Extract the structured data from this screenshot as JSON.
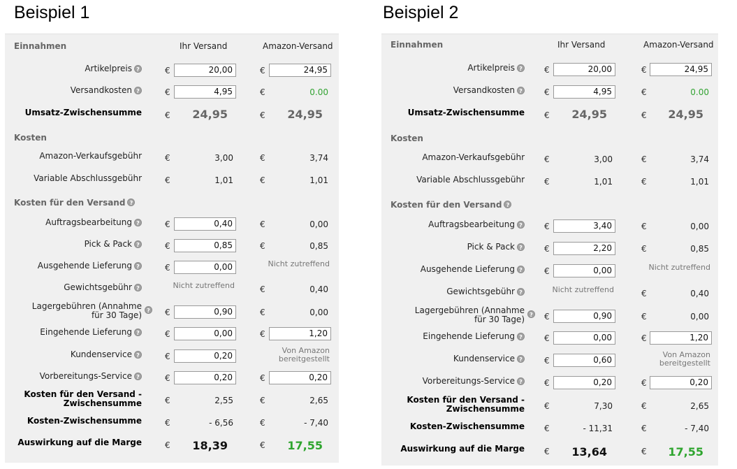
{
  "examples": [
    {
      "title": "Beispiel 1",
      "headers": {
        "section": "Einnahmen",
        "col_ihr": "Ihr Versand",
        "col_amazon": "Amazon-Versand"
      },
      "rows": [
        {
          "key": "artikelpreis",
          "label": "Artikelpreis",
          "help": true,
          "ihr": {
            "type": "input",
            "value": "20,00"
          },
          "amazon": {
            "type": "input",
            "value": "24,95"
          }
        },
        {
          "key": "versandkosten",
          "label": "Versandkosten",
          "help": true,
          "ihr": {
            "type": "input",
            "value": "4,95"
          },
          "amazon": {
            "type": "green",
            "value": "0.00"
          }
        },
        {
          "key": "umsatz",
          "label": "Umsatz-Zwischensumme",
          "bold": true,
          "ihr": {
            "type": "big",
            "value": "24,95"
          },
          "amazon": {
            "type": "big",
            "value": "24,95"
          }
        },
        {
          "key": "kosten",
          "section": "Kosten"
        },
        {
          "key": "verkaufsgebuehr",
          "label": "Amazon-Verkaufsgebühr",
          "ihr": {
            "type": "text",
            "value": "3,00"
          },
          "amazon": {
            "type": "text",
            "value": "3,74"
          }
        },
        {
          "key": "abschlussgebuehr",
          "label": "Variable Abschlussgebühr",
          "ihr": {
            "type": "text",
            "value": "1,01"
          },
          "amazon": {
            "type": "text",
            "value": "1,01"
          }
        },
        {
          "key": "versand-kosten",
          "section": "Kosten für den Versand",
          "help": true
        },
        {
          "key": "auftrag",
          "label": "Auftragsbearbeitung",
          "help": true,
          "ihr": {
            "type": "input",
            "value": "0,40"
          },
          "amazon": {
            "type": "text",
            "value": "0,00"
          }
        },
        {
          "key": "pick",
          "label": "Pick & Pack",
          "help": true,
          "ihr": {
            "type": "input",
            "value": "0,85"
          },
          "amazon": {
            "type": "text",
            "value": "0,85"
          }
        },
        {
          "key": "ausgehend",
          "label": "Ausgehende Lieferung",
          "help": true,
          "ihr": {
            "type": "input",
            "value": "0,00"
          },
          "amazon": {
            "type": "na",
            "value": "Nicht zutreffend"
          }
        },
        {
          "key": "gewicht",
          "label": "Gewichtsgebühr",
          "help": true,
          "ihr": {
            "type": "na",
            "value": "Nicht zutreffend"
          },
          "amazon": {
            "type": "text",
            "value": "0,40"
          }
        },
        {
          "key": "lager",
          "label": "Lagergebühren (Annahme für 30 Tage)",
          "label_lines": [
            "Lagergebühren (Annahme",
            "für 30 Tage)"
          ],
          "help": true,
          "ihr": {
            "type": "input",
            "value": "0,90"
          },
          "amazon": {
            "type": "text",
            "value": "0,00"
          }
        },
        {
          "key": "eingehend",
          "label": "Eingehende Lieferung",
          "help": true,
          "ihr": {
            "type": "input",
            "value": "0,00"
          },
          "amazon": {
            "type": "input",
            "value": "1,20"
          }
        },
        {
          "key": "kundenservice",
          "label": "Kundenservice",
          "help": true,
          "ihr": {
            "type": "input",
            "value": "0,20"
          },
          "amazon": {
            "type": "na2",
            "value": "Von Amazon bereitgestellt",
            "lines": [
              "Von Amazon",
              "bereitgestellt"
            ]
          }
        },
        {
          "key": "vorbereitung",
          "label": "Vorbereitungs-Service",
          "help": true,
          "ihr": {
            "type": "input",
            "value": "0,20"
          },
          "amazon": {
            "type": "input",
            "value": "0,20"
          }
        },
        {
          "key": "versand-zwischensumme",
          "label": "Kosten für den Versand - Zwischensumme",
          "label_lines": [
            "Kosten für den Versand -",
            "Zwischensumme"
          ],
          "bold": true,
          "ihr": {
            "type": "text",
            "value": "2,55"
          },
          "amazon": {
            "type": "text",
            "value": "2,65"
          }
        },
        {
          "key": "kosten-zwischensumme",
          "label": "Kosten-Zwischensumme",
          "bold": true,
          "ihr": {
            "type": "text",
            "value": "- 6,56"
          },
          "amazon": {
            "type": "text",
            "value": "- 7,40"
          }
        },
        {
          "key": "marge",
          "label": "Auswirkung auf die Marge",
          "bold": true,
          "ihr": {
            "type": "bigdark",
            "value": "18,39"
          },
          "amazon": {
            "type": "biggreen",
            "value": "17,55"
          }
        }
      ]
    },
    {
      "title": "Beispiel 2",
      "headers": {
        "section": "Einnahmen",
        "col_ihr": "Ihr Versand",
        "col_amazon": "Amazon-Versand"
      },
      "rows": [
        {
          "key": "artikelpreis",
          "label": "Artikelpreis",
          "help": true,
          "ihr": {
            "type": "input",
            "value": "20,00"
          },
          "amazon": {
            "type": "input",
            "value": "24,95"
          }
        },
        {
          "key": "versandkosten",
          "label": "Versandkosten",
          "help": true,
          "ihr": {
            "type": "input",
            "value": "4,95"
          },
          "amazon": {
            "type": "green",
            "value": "0.00"
          }
        },
        {
          "key": "umsatz",
          "label": "Umsatz-Zwischensumme",
          "bold": true,
          "ihr": {
            "type": "big",
            "value": "24,95"
          },
          "amazon": {
            "type": "big",
            "value": "24,95"
          }
        },
        {
          "key": "kosten",
          "section": "Kosten"
        },
        {
          "key": "verkaufsgebuehr",
          "label": "Amazon-Verkaufsgebühr",
          "ihr": {
            "type": "text",
            "value": "3,00"
          },
          "amazon": {
            "type": "text",
            "value": "3,74"
          }
        },
        {
          "key": "abschlussgebuehr",
          "label": "Variable Abschlussgebühr",
          "ihr": {
            "type": "text",
            "value": "1,01"
          },
          "amazon": {
            "type": "text",
            "value": "1,01"
          }
        },
        {
          "key": "versand-kosten",
          "section": "Kosten für den Versand",
          "help": true
        },
        {
          "key": "auftrag",
          "label": "Auftragsbearbeitung",
          "help": true,
          "ihr": {
            "type": "input",
            "value": "3,40"
          },
          "amazon": {
            "type": "text",
            "value": "0,00"
          }
        },
        {
          "key": "pick",
          "label": "Pick & Pack",
          "help": true,
          "ihr": {
            "type": "input",
            "value": "2,20"
          },
          "amazon": {
            "type": "text",
            "value": "0,85"
          }
        },
        {
          "key": "ausgehend",
          "label": "Ausgehende Lieferung",
          "help": true,
          "ihr": {
            "type": "input",
            "value": "0,00"
          },
          "amazon": {
            "type": "na",
            "value": "Nicht zutreffend"
          }
        },
        {
          "key": "gewicht",
          "label": "Gewichtsgebühr",
          "help": true,
          "ihr": {
            "type": "na",
            "value": "Nicht zutreffend"
          },
          "amazon": {
            "type": "text",
            "value": "0,40"
          }
        },
        {
          "key": "lager",
          "label": "Lagergebühren (Annahme für 30 Tage)",
          "label_lines": [
            "Lagergebühren (Annahme",
            "für 30 Tage)"
          ],
          "help": true,
          "ihr": {
            "type": "input",
            "value": "0,90"
          },
          "amazon": {
            "type": "text",
            "value": "0,00"
          }
        },
        {
          "key": "eingehend",
          "label": "Eingehende Lieferung",
          "help": true,
          "ihr": {
            "type": "input",
            "value": "0,00"
          },
          "amazon": {
            "type": "input",
            "value": "1,20"
          }
        },
        {
          "key": "kundenservice",
          "label": "Kundenservice",
          "help": true,
          "ihr": {
            "type": "input",
            "value": "0,60"
          },
          "amazon": {
            "type": "na2",
            "value": "Von Amazon bereitgestellt",
            "lines": [
              "Von Amazon",
              "bereitgestellt"
            ]
          }
        },
        {
          "key": "vorbereitung",
          "label": "Vorbereitungs-Service",
          "help": true,
          "ihr": {
            "type": "input",
            "value": "0,20"
          },
          "amazon": {
            "type": "input",
            "value": "0,20"
          }
        },
        {
          "key": "versand-zwischensumme",
          "label": "Kosten für den Versand - Zwischensumme",
          "label_lines": [
            "Kosten für den Versand -",
            "Zwischensumme"
          ],
          "bold": true,
          "ihr": {
            "type": "text",
            "value": "7,30"
          },
          "amazon": {
            "type": "text",
            "value": "2,65"
          }
        },
        {
          "key": "kosten-zwischensumme",
          "label": "Kosten-Zwischensumme",
          "bold": true,
          "ihr": {
            "type": "text",
            "value": "- 11,31"
          },
          "amazon": {
            "type": "text",
            "value": "- 7,40"
          }
        },
        {
          "key": "marge",
          "label": "Auswirkung auf die Marge",
          "bold": true,
          "ihr": {
            "type": "bigdark",
            "value": "13,64"
          },
          "amazon": {
            "type": "biggreen",
            "value": "17,55"
          }
        }
      ]
    }
  ],
  "currency_symbol": "€",
  "colors": {
    "panel_bg": "#f0f0f0",
    "green_value": "#2fa52f",
    "section_text": "#666666"
  },
  "icons": {
    "help": "help-circle-icon"
  }
}
